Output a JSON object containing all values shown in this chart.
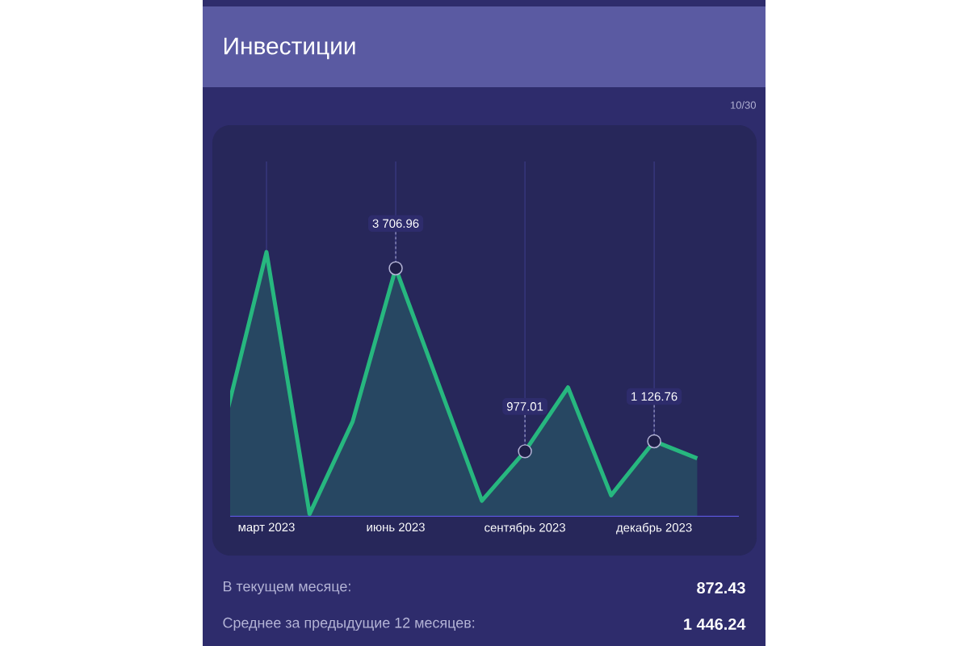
{
  "chart_data": {
    "type": "area",
    "title": "Инвестиции",
    "ylim": [
      0,
      5300
    ],
    "categories": [
      null,
      "март 2023",
      null,
      null,
      "июнь 2023",
      null,
      null,
      "сентябрь 2023",
      null,
      null,
      "декабрь 2023",
      null
    ],
    "series": [
      {
        "color": "#27b77f",
        "values": [
          1340,
          3950,
          40,
          1420,
          3706.96,
          1970,
          240,
          977.01,
          1930,
          320,
          1126.76,
          872.43
        ],
        "value_labels": [
          null,
          null,
          null,
          null,
          "3 706.96",
          null,
          null,
          "977.01",
          null,
          null,
          "1 126.76",
          null
        ]
      }
    ],
    "grid": "x",
    "annotations": [
      "10/30",
      "В текущем месяце:",
      "872.43",
      "Среднее за предыдущие 12 месяцев:",
      "1 446.24"
    ]
  }
}
